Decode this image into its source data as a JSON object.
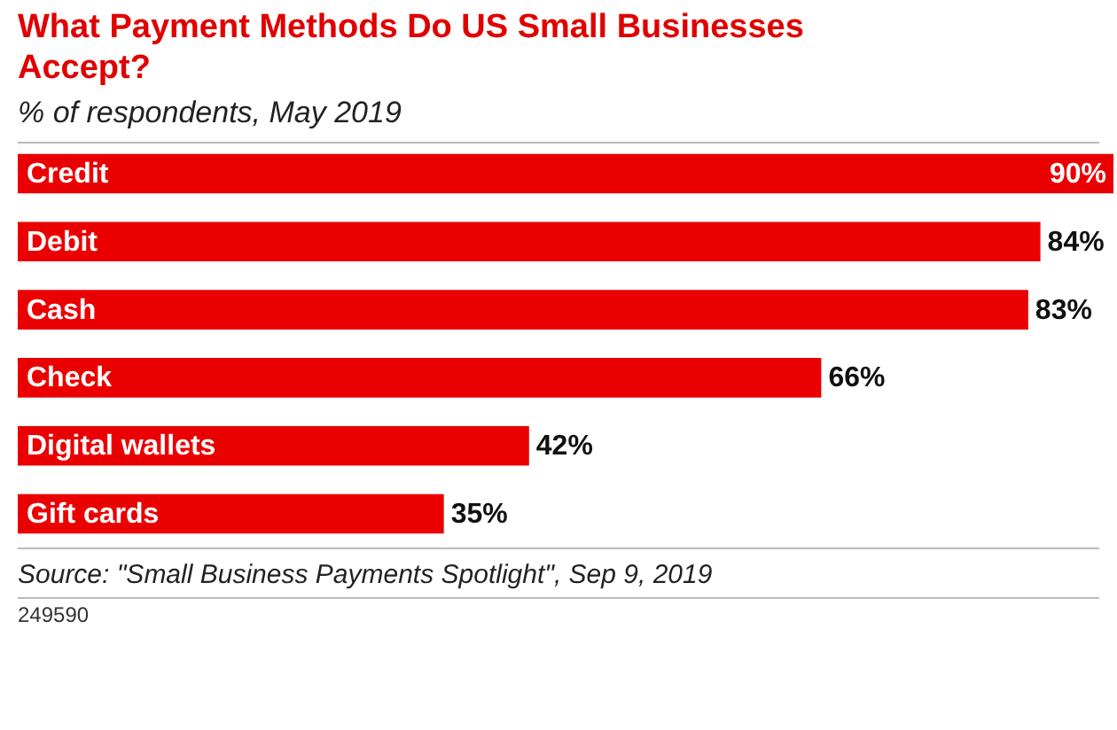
{
  "chart_data": {
    "type": "bar",
    "orientation": "horizontal",
    "title": "What Payment Methods Do US Small Businesses Accept?",
    "subtitle": "% of respondents, May 2019",
    "categories": [
      "Credit",
      "Debit",
      "Cash",
      "Check",
      "Digital wallets",
      "Gift cards"
    ],
    "values": [
      90,
      84,
      83,
      66,
      42,
      35
    ],
    "value_labels": [
      "90%",
      "84%",
      "83%",
      "66%",
      "42%",
      "35%"
    ],
    "color": "#ea0000",
    "annotations": [
      "Source: \"Small Business Payments Spotlight\", Sep 9, 2019",
      "249590"
    ]
  }
}
